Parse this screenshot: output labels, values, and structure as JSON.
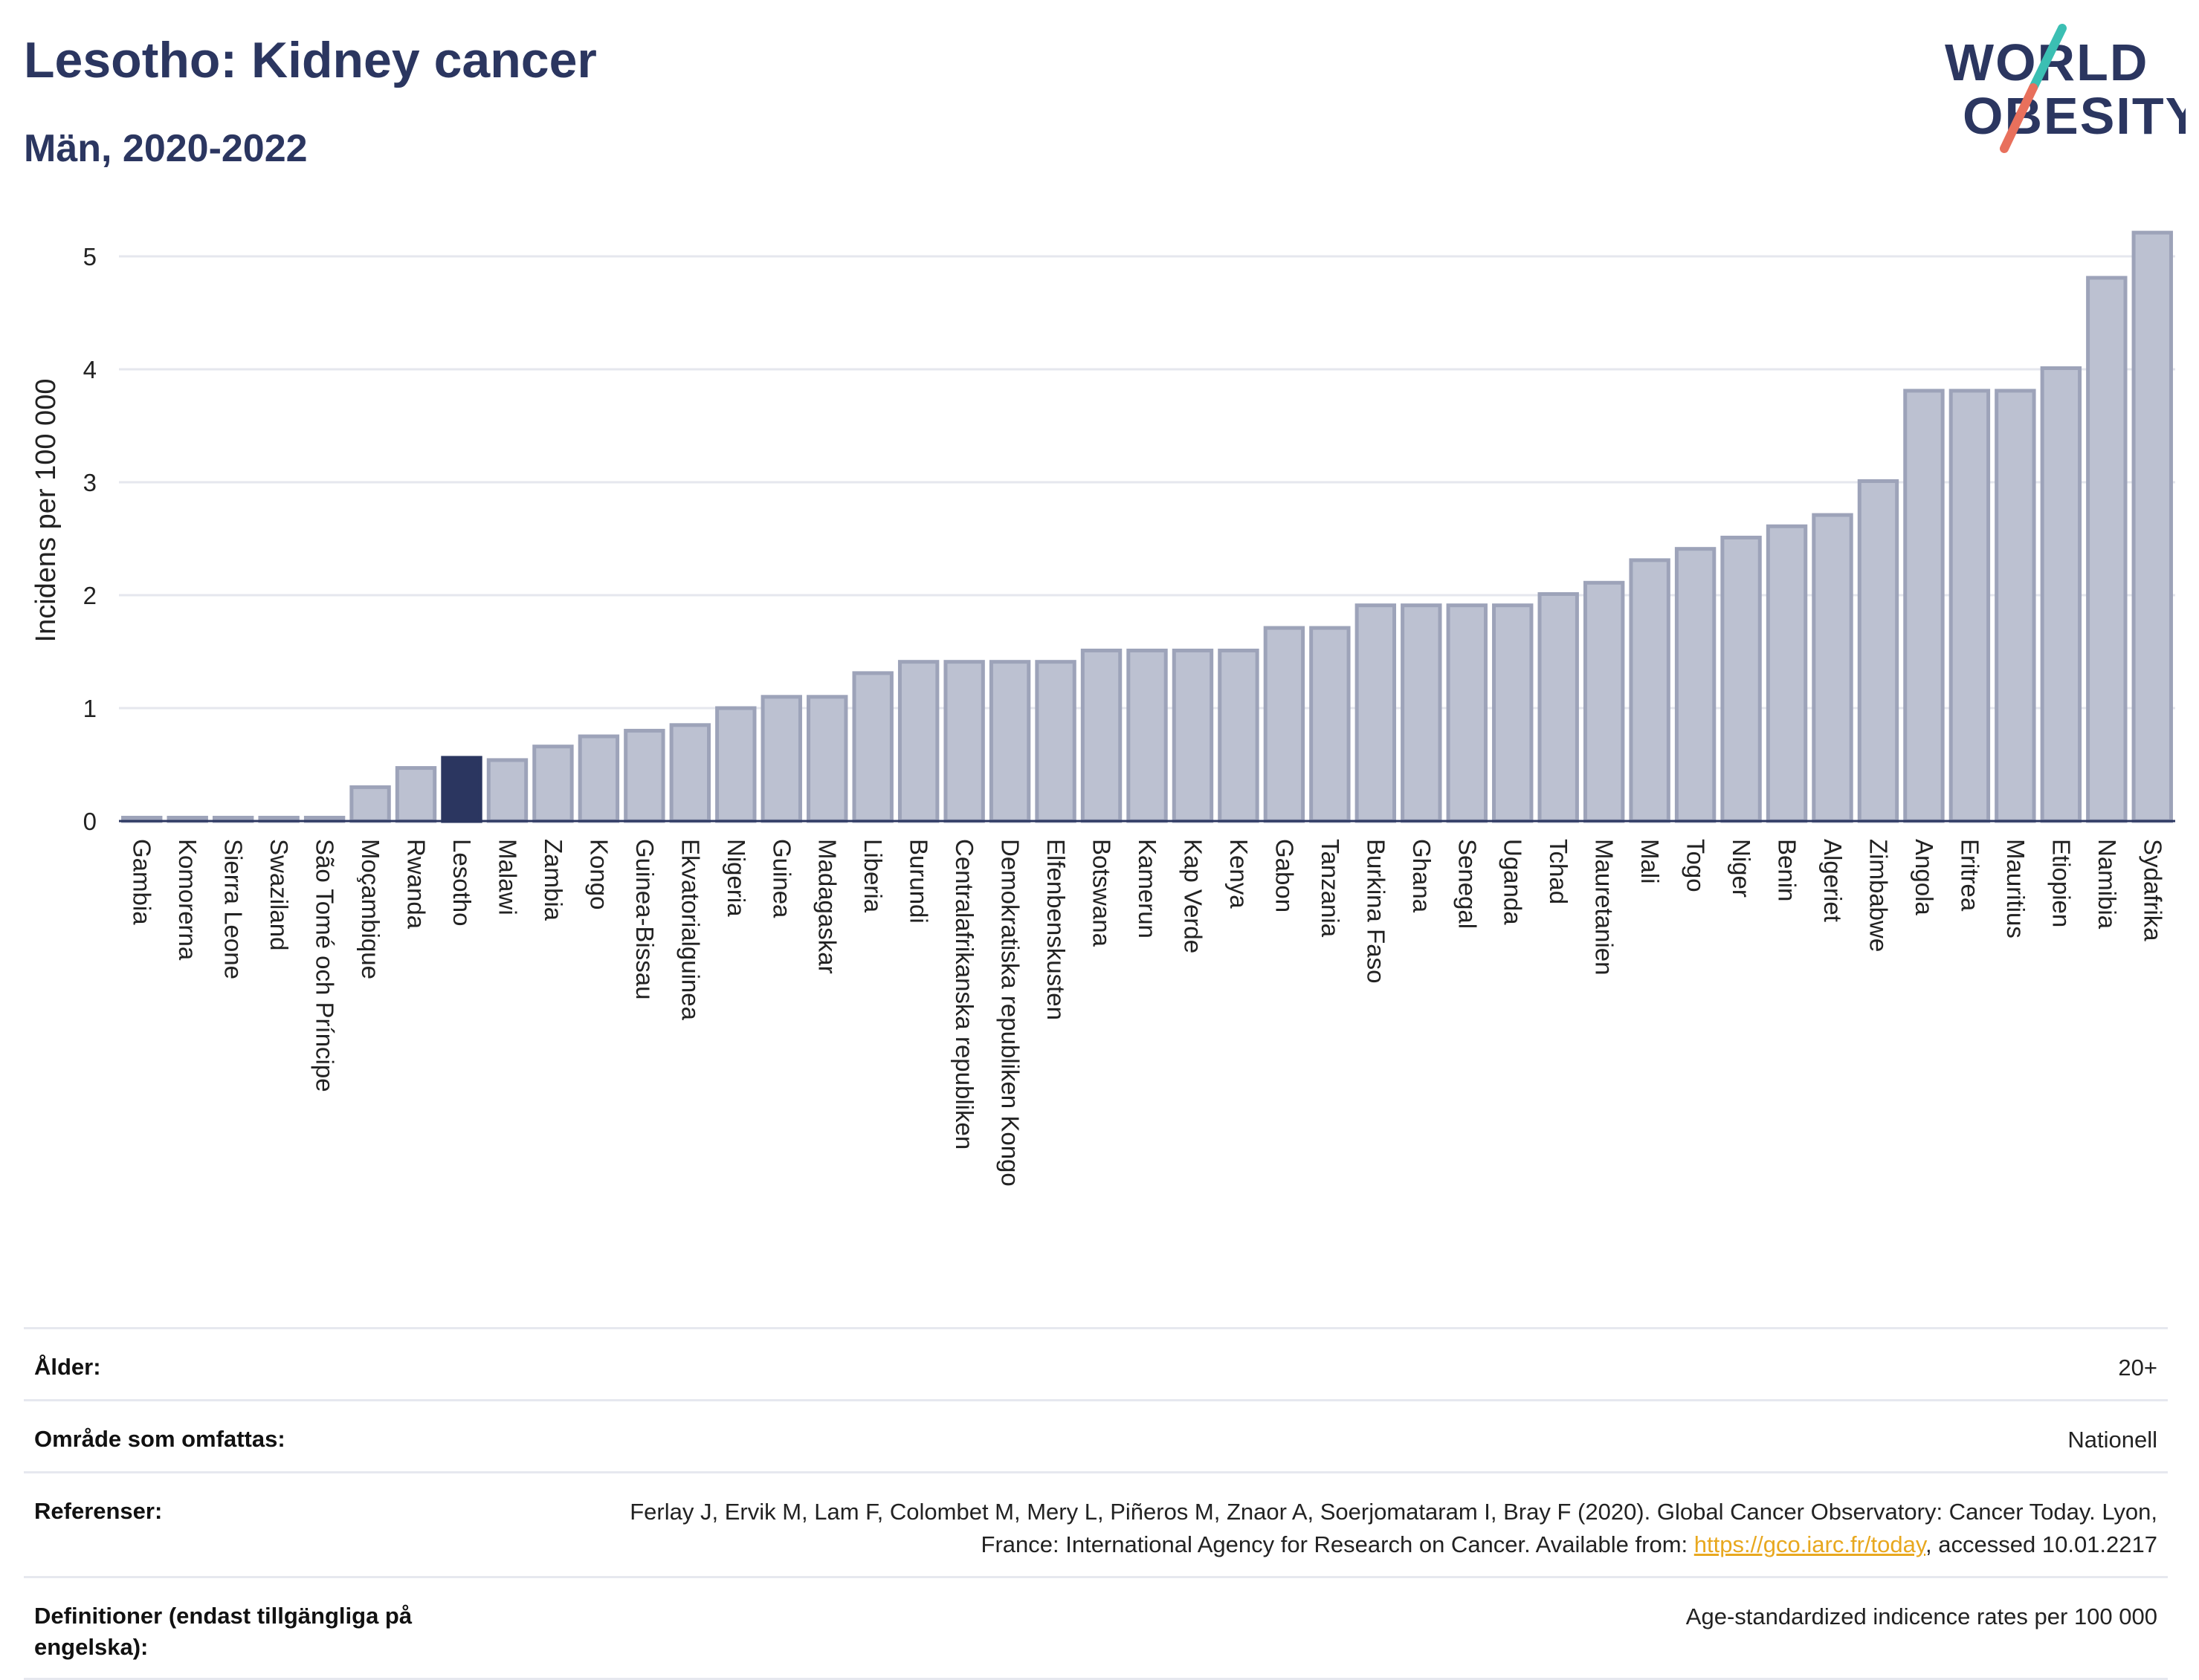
{
  "header": {
    "title": "Lesotho: Kidney cancer",
    "subtitle": "Män, 2020-2022"
  },
  "logo": {
    "line1": "WORLD",
    "line2": "OBESITY"
  },
  "colors": {
    "title": "#2b3660",
    "bar_default": "#bcc1d1",
    "bar_default_stroke": "#9da3b9",
    "bar_highlight": "#2b3660",
    "grid": "#e5e7ee",
    "link": "#e8a81f"
  },
  "chart_data": {
    "type": "bar",
    "ylabel": "Incidens per 100 000",
    "ylim": [
      0,
      5.5
    ],
    "yticks": [
      0,
      1,
      2,
      3,
      4,
      5
    ],
    "grid": true,
    "highlight": "Lesotho",
    "categories": [
      "Gambia",
      "Komorerna",
      "Sierra Leone",
      "Swaziland",
      "São Tomé och Príncipe",
      "Moçambique",
      "Rwanda",
      "Lesotho",
      "Malawi",
      "Zambia",
      "Kongo",
      "Guinea-Bissau",
      "Ekvatorialguinea",
      "Nigeria",
      "Guinea",
      "Madagaskar",
      "Liberia",
      "Burundi",
      "Centralafrikanska republiken",
      "Demokratiska republiken Kongo",
      "Elfenbenskusten",
      "Botswana",
      "Kamerun",
      "Kap Verde",
      "Kenya",
      "Gabon",
      "Tanzania",
      "Burkina Faso",
      "Ghana",
      "Senegal",
      "Uganda",
      "Tchad",
      "Mauretanien",
      "Mali",
      "Togo",
      "Niger",
      "Benin",
      "Algeriet",
      "Zimbabwe",
      "Angola",
      "Eritrea",
      "Mauritius",
      "Etiopien",
      "Namibia",
      "Sydafrika"
    ],
    "values": [
      0.03,
      0.03,
      0.03,
      0.03,
      0.03,
      0.3,
      0.47,
      0.56,
      0.54,
      0.66,
      0.75,
      0.8,
      0.85,
      1.0,
      1.1,
      1.1,
      1.31,
      1.41,
      1.41,
      1.41,
      1.41,
      1.51,
      1.51,
      1.51,
      1.51,
      1.71,
      1.71,
      1.91,
      1.91,
      1.91,
      1.91,
      2.01,
      2.11,
      2.31,
      2.41,
      2.51,
      2.61,
      2.71,
      3.01,
      3.81,
      3.81,
      3.81,
      4.01,
      4.81,
      5.21
    ]
  },
  "info": {
    "age_label": "Ålder:",
    "age_value": "20+",
    "area_label": "Område som omfattas:",
    "area_value": "Nationell",
    "ref_label": "Referenser:",
    "ref_text_before": "Ferlay J, Ervik M, Lam F, Colombet M, Mery L, Piñeros M, Znaor A, Soerjomataram I, Bray F (2020). Global Cancer Observatory: Cancer Today. Lyon, France: International Agency for Research on Cancer. Available from: ",
    "ref_link": "https://gco.iarc.fr/today",
    "ref_text_after": ", accessed 10.01.2217",
    "def_label": "Definitioner (endast tillgängliga på engelska):",
    "def_value": "Age-standardized indicence rates per 100 000"
  }
}
